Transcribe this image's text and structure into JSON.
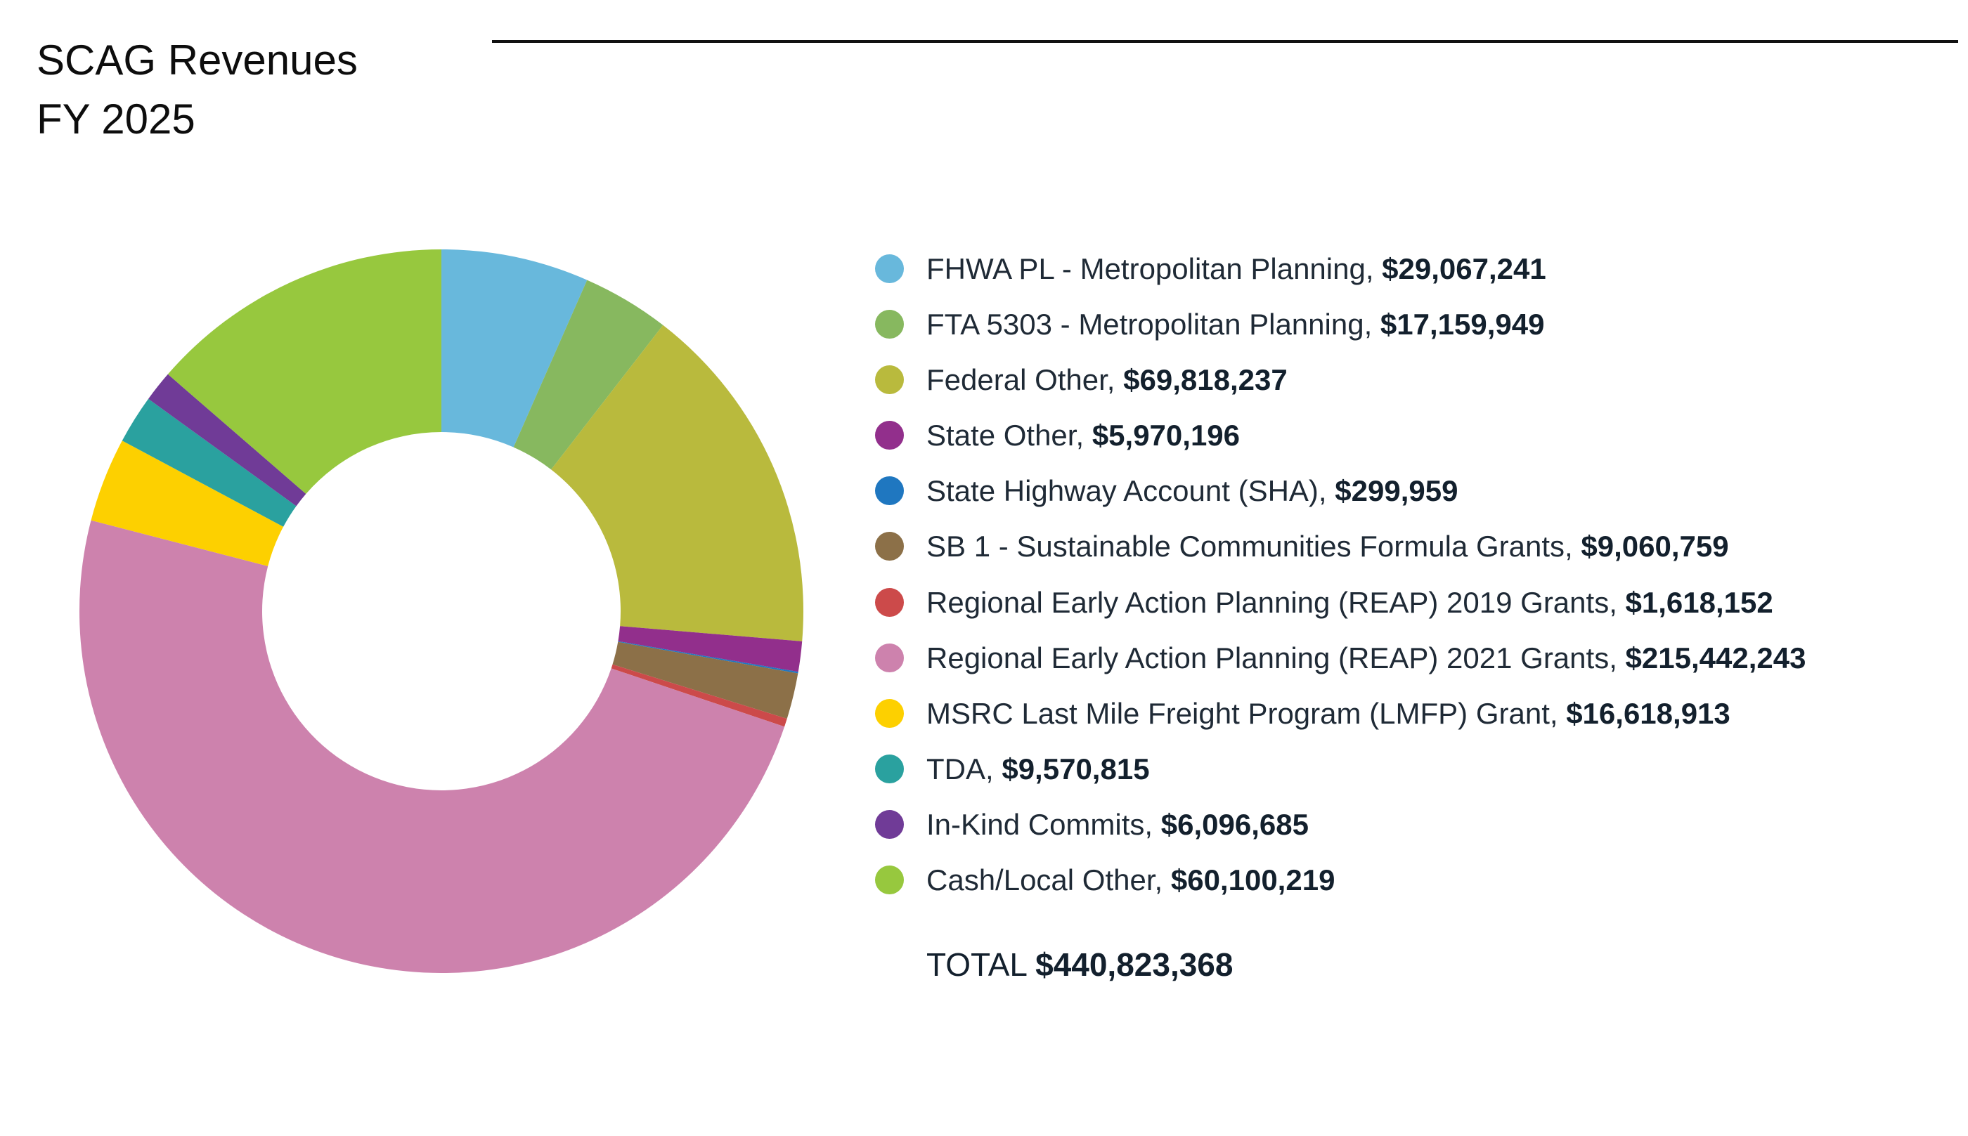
{
  "title": {
    "line1": "SCAG Revenues",
    "line2": "FY 2025"
  },
  "chart_data": {
    "type": "pie",
    "variant": "donut",
    "title": "SCAG Revenues FY 2025",
    "legend_position": "right",
    "slices": [
      {
        "label": "FHWA PL - Metropolitan Planning",
        "value": 29067241,
        "value_text": "$29,067,241",
        "color": "#68b8dc"
      },
      {
        "label": "FTA 5303 - Metropolitan Planning",
        "value": 17159949,
        "value_text": "$17,159,949",
        "color": "#87b85f"
      },
      {
        "label": "Federal Other",
        "value": 69818237,
        "value_text": "$69,818,237",
        "color": "#b9ba3d"
      },
      {
        "label": "State Other",
        "value": 5970196,
        "value_text": "$5,970,196",
        "color": "#922f8c"
      },
      {
        "label": "State Highway Account (SHA)",
        "value": 299959,
        "value_text": "$299,959",
        "color": "#1f77c0"
      },
      {
        "label": "SB 1 - Sustainable Communities Formula Grants",
        "value": 9060759,
        "value_text": "$9,060,759",
        "color": "#8c7048"
      },
      {
        "label": "Regional Early Action Planning (REAP) 2019 Grants",
        "value": 1618152,
        "value_text": "$1,618,152",
        "color": "#cc4a4a"
      },
      {
        "label": "Regional Early Action Planning (REAP) 2021 Grants",
        "value": 215442243,
        "value_text": "$215,442,243",
        "color": "#cd82ad"
      },
      {
        "label": "MSRC Last Mile Freight Program (LMFP) Grant",
        "value": 16618913,
        "value_text": "$16,618,913",
        "color": "#fdd000"
      },
      {
        "label": "TDA",
        "value": 9570815,
        "value_text": "$9,570,815",
        "color": "#2aa19f"
      },
      {
        "label": "In-Kind Commits",
        "value": 6096685,
        "value_text": "$6,096,685",
        "color": "#703b97"
      },
      {
        "label": "Cash/Local Other",
        "value": 60100219,
        "value_text": "$60,100,219",
        "color": "#97c83e"
      }
    ],
    "total": {
      "label": "TOTAL",
      "value": 440823368,
      "value_text": "$440,823,368"
    }
  }
}
